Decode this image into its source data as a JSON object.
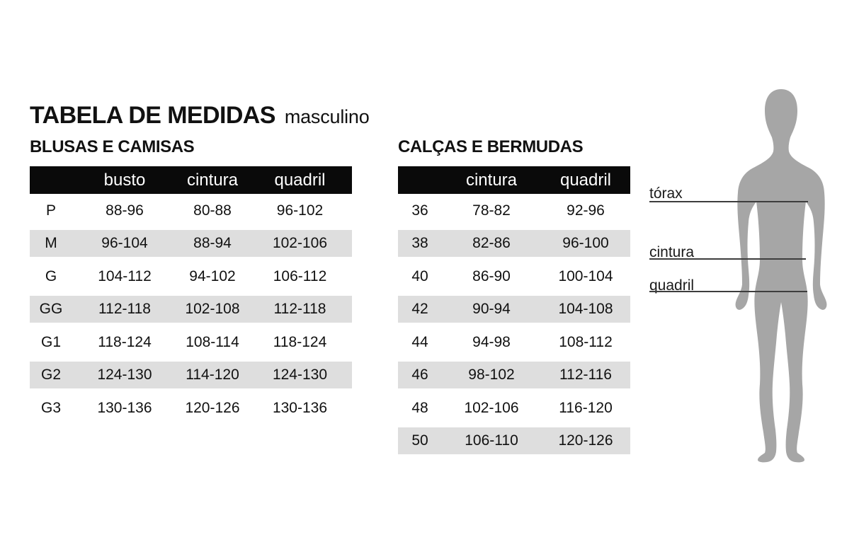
{
  "page": {
    "title": "TABELA DE MEDIDAS",
    "subtitle": "masculino"
  },
  "tables": [
    {
      "section": "BLUSAS E CAMISAS",
      "headers": [
        "",
        "busto",
        "cintura",
        "quadril"
      ],
      "rows": [
        [
          "P",
          "88-96",
          "80-88",
          "96-102"
        ],
        [
          "M",
          "96-104",
          "88-94",
          "102-106"
        ],
        [
          "G",
          "104-112",
          "94-102",
          "106-112"
        ],
        [
          "GG",
          "112-118",
          "102-108",
          "112-118"
        ],
        [
          "G1",
          "118-124",
          "108-114",
          "118-124"
        ],
        [
          "G2",
          "124-130",
          "114-120",
          "124-130"
        ],
        [
          "G3",
          "130-136",
          "120-126",
          "130-136"
        ]
      ]
    },
    {
      "section": "CALÇAS E BERMUDAS",
      "headers": [
        "",
        "cintura",
        "quadril"
      ],
      "rows": [
        [
          "36",
          "78-82",
          "92-96"
        ],
        [
          "38",
          "82-86",
          "96-100"
        ],
        [
          "40",
          "86-90",
          "100-104"
        ],
        [
          "42",
          "90-94",
          "104-108"
        ],
        [
          "44",
          "94-98",
          "108-112"
        ],
        [
          "46",
          "98-102",
          "112-116"
        ],
        [
          "48",
          "102-106",
          "116-120"
        ],
        [
          "50",
          "106-110",
          "120-126"
        ]
      ]
    }
  ],
  "figure": {
    "measurements": [
      {
        "label": "tórax"
      },
      {
        "label": "cintura"
      },
      {
        "label": "quadril"
      }
    ],
    "silhouette_color": "#a6a6a6",
    "line_color": "#3d3d3d"
  },
  "colors": {
    "header_bg": "#0a0a0a",
    "header_text": "#ffffff",
    "row_stripe": "#dedede",
    "text": "#111111"
  }
}
